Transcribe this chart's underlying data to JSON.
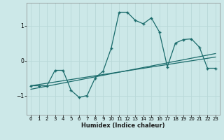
{
  "xlabel": "Humidex (Indice chaleur)",
  "bg_color": "#cce8e8",
  "grid_color": "#b8d8d8",
  "line_color": "#1a6b6b",
  "xlim": [
    -0.5,
    23.5
  ],
  "ylim": [
    -1.55,
    1.65
  ],
  "xticks": [
    0,
    1,
    2,
    3,
    4,
    5,
    6,
    7,
    8,
    9,
    10,
    11,
    12,
    13,
    14,
    15,
    16,
    17,
    18,
    19,
    20,
    21,
    22,
    23
  ],
  "yticks": [
    -1,
    0,
    1
  ],
  "curve_x": [
    0,
    1,
    2,
    3,
    4,
    5,
    6,
    7,
    8,
    9,
    10,
    11,
    12,
    13,
    14,
    15,
    16,
    17,
    18,
    19,
    20,
    21,
    22,
    23
  ],
  "curve_y": [
    -0.72,
    -0.72,
    -0.72,
    -0.28,
    -0.28,
    -0.85,
    -1.05,
    -1.0,
    -0.5,
    -0.3,
    0.35,
    1.38,
    1.38,
    1.15,
    1.05,
    1.22,
    0.82,
    -0.18,
    0.5,
    0.6,
    0.62,
    0.38,
    -0.22,
    -0.22
  ],
  "line1_x": [
    0,
    23
  ],
  "line1_y": [
    -0.72,
    0.1
  ],
  "line2_x": [
    0,
    23
  ],
  "line2_y": [
    -0.82,
    0.2
  ]
}
